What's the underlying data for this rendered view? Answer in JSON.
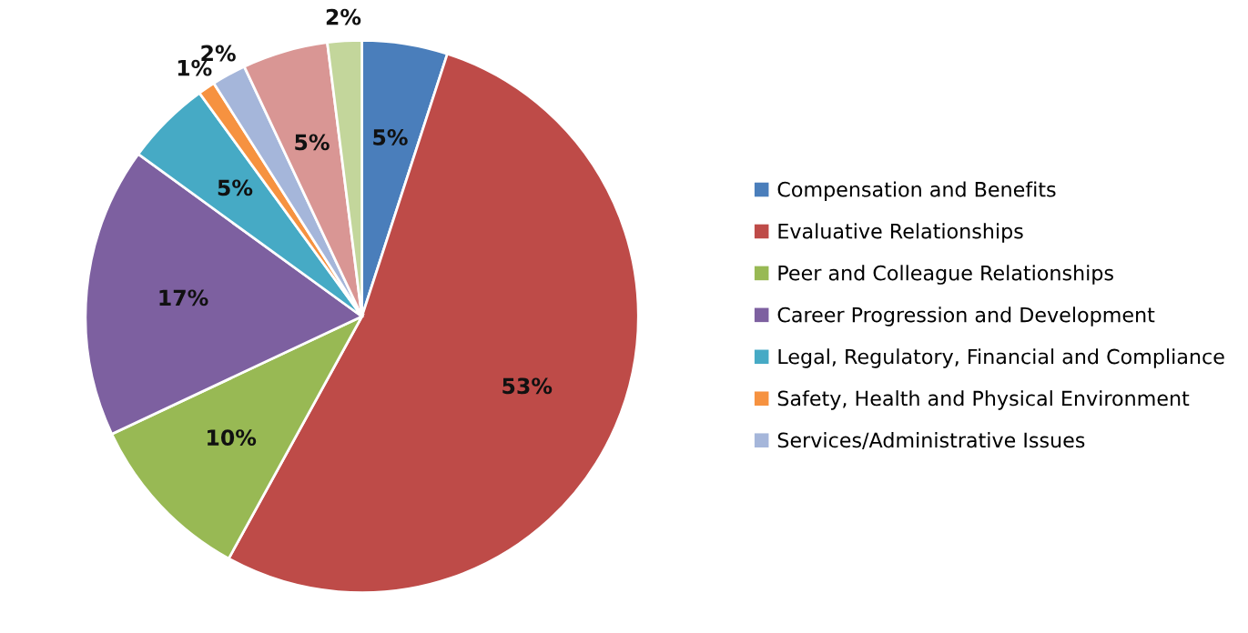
{
  "chart_data": {
    "type": "pie",
    "categories": [
      "Compensation and Benefits",
      "Evaluative Relationships",
      "Peer and Colleague Relationships",
      "Career Progression and Development",
      "Legal, Regulatory, Financial and Compliance",
      "Safety, Health and Physical Environment",
      "Services/Administrative Issues",
      null,
      null
    ],
    "values": [
      5,
      53,
      10,
      17,
      5,
      1,
      2,
      5,
      2
    ],
    "value_labels": [
      "5%",
      "53%",
      "10%",
      "17%",
      "5%",
      "1%",
      "2%",
      "5%",
      "2%"
    ],
    "colors": [
      "#4a7ebb",
      "#be4b48",
      "#98b954",
      "#7d60a0",
      "#46aac5",
      "#f69240",
      "#a5b6da",
      "#d99694",
      "#c3d69b"
    ],
    "legend": "right"
  }
}
